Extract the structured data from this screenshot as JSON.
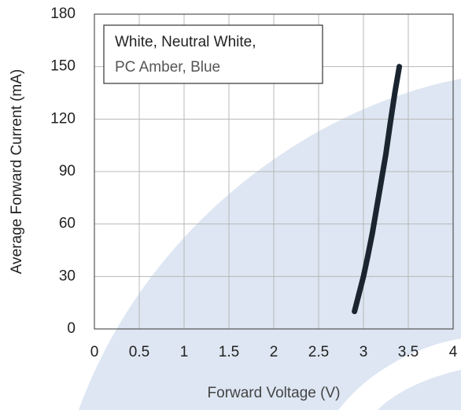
{
  "chart_data": {
    "type": "line",
    "x_label": "Forward Voltage (V)",
    "y_label": "Average Forward Current (mA)",
    "annotation": [
      "White, Neutral White,",
      "PC Amber, Blue"
    ],
    "series": [
      {
        "color": "#1a2530",
        "x": [
          2.9,
          2.95,
          3.0,
          3.05,
          3.1,
          3.15,
          3.2,
          3.25,
          3.3,
          3.35,
          3.4
        ],
        "values": [
          10,
          20,
          30,
          42,
          55,
          70,
          85,
          100,
          118,
          135,
          150
        ]
      }
    ],
    "xlim": [
      0,
      4
    ],
    "xticks": [
      0,
      0.5,
      1,
      1.5,
      2,
      2.5,
      3,
      3.5,
      4
    ],
    "ylim": [
      0,
      180
    ],
    "yticks": [
      0,
      30,
      60,
      90,
      120,
      150,
      180
    ],
    "grid": true
  }
}
